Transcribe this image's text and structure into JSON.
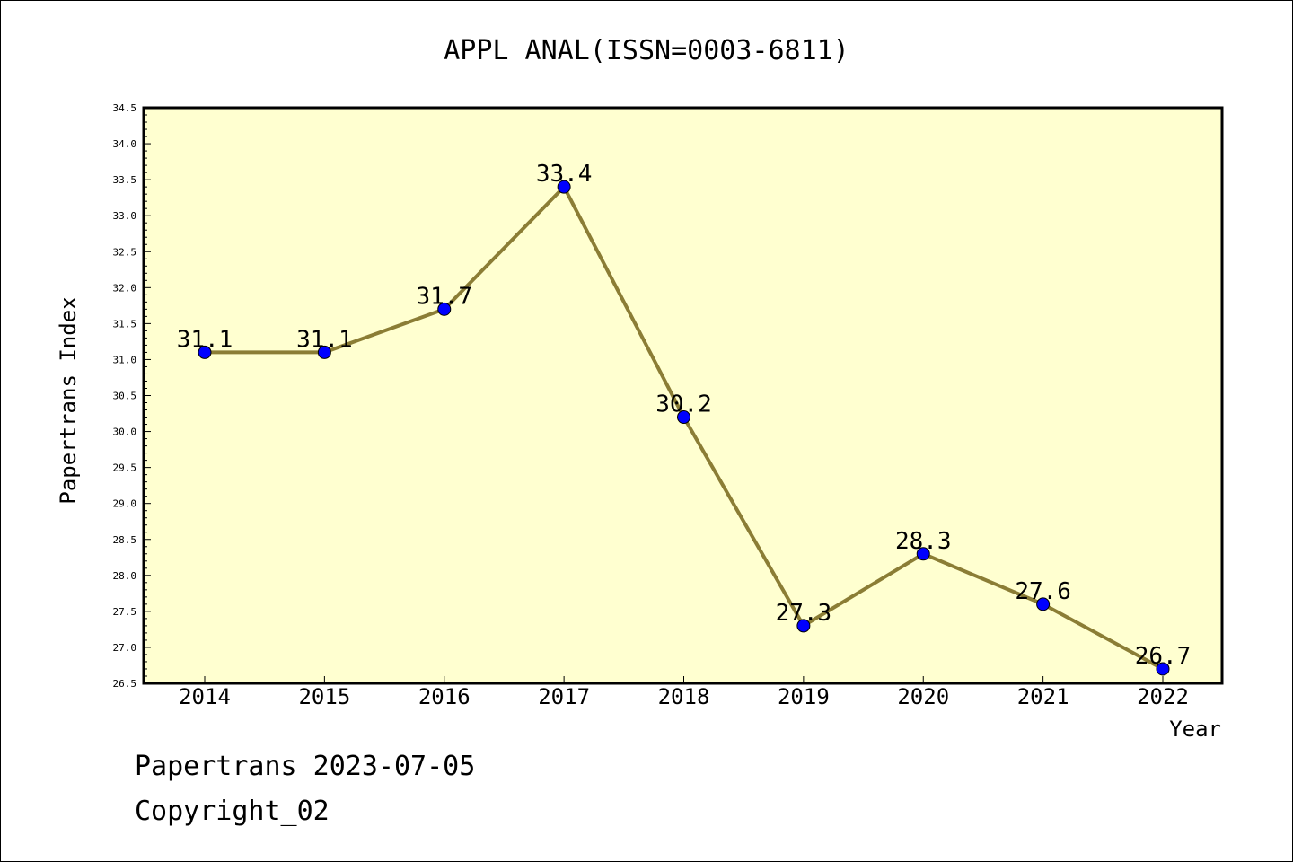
{
  "chart_data": {
    "type": "line",
    "title": "APPL ANAL(ISSN=0003-6811)",
    "xlabel": "Year",
    "ylabel": "Papertrans Index",
    "categories": [
      "2014",
      "2015",
      "2016",
      "2017",
      "2018",
      "2019",
      "2020",
      "2021",
      "2022"
    ],
    "series": [
      {
        "values": [
          31.1,
          31.1,
          31.7,
          33.4,
          30.2,
          27.3,
          28.3,
          27.6,
          26.7
        ]
      }
    ],
    "data_labels": [
      "31.1",
      "31.1",
      "31.7",
      "33.4",
      "30.2",
      "27.3",
      "28.3",
      "27.6",
      "26.7"
    ],
    "ylim": [
      26.5,
      34.5
    ],
    "y_ticks": [
      "26.5",
      "27.0",
      "27.5",
      "28.0",
      "28.5",
      "29.0",
      "29.5",
      "30.0",
      "30.5",
      "31.0",
      "31.5",
      "32.0",
      "32.5",
      "33.0",
      "33.5",
      "34.0",
      "34.5"
    ],
    "grid": false,
    "legend": "none",
    "colors": {
      "plot_background": "#ffffd0",
      "line": "#8b7d35",
      "marker": "#0000ff"
    }
  },
  "footer": {
    "line1": "Papertrans 2023-07-05",
    "line2": "Copyright_02"
  }
}
